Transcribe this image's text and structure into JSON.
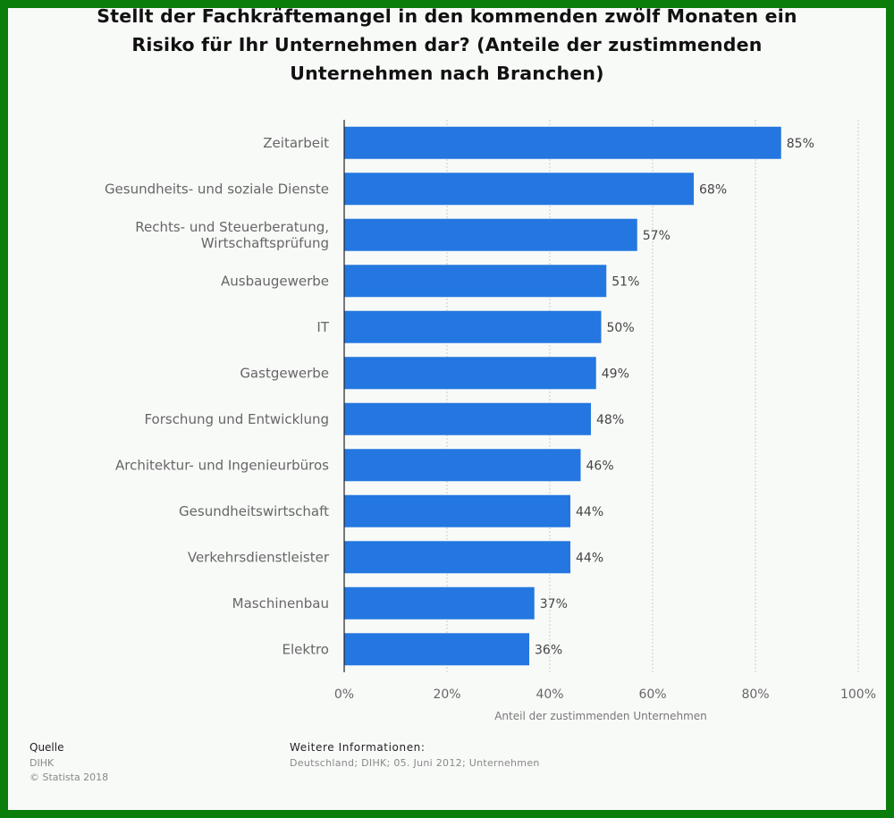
{
  "chart_data": {
    "type": "bar",
    "orientation": "horizontal",
    "title_lines": [
      "Stellt der Fachkräftemangel in den kommenden zwölf Monaten ein",
      "Risiko für Ihr Unternehmen dar? (Anteile der zustimmenden",
      "Unternehmen nach Branchen)"
    ],
    "categories": [
      [
        "Zeitarbeit"
      ],
      [
        "Gesundheits- und soziale Dienste"
      ],
      [
        "Rechts- und Steuerberatung,",
        "Wirtschaftsprüfung"
      ],
      [
        "Ausbaugewerbe"
      ],
      [
        "IT"
      ],
      [
        "Gastgewerbe"
      ],
      [
        "Forschung und Entwicklung"
      ],
      [
        "Architektur- und Ingenieurbüros"
      ],
      [
        "Gesundheitswirtschaft"
      ],
      [
        "Verkehrsdienstleister"
      ],
      [
        "Maschinenbau"
      ],
      [
        "Elektro"
      ]
    ],
    "values": [
      85,
      68,
      57,
      51,
      50,
      49,
      48,
      46,
      44,
      44,
      37,
      36
    ],
    "value_labels": [
      "85%",
      "68%",
      "57%",
      "51%",
      "50%",
      "49%",
      "48%",
      "46%",
      "44%",
      "44%",
      "37%",
      "36%"
    ],
    "xlim": [
      0,
      100
    ],
    "xticks": [
      0,
      20,
      40,
      60,
      80,
      100
    ],
    "xtick_labels": [
      "0%",
      "20%",
      "40%",
      "60%",
      "80%",
      "100%"
    ],
    "xlabel": "Anteil der zustimmenden Unternehmen",
    "grid": true,
    "bar_color": "#2477e0"
  },
  "footer": {
    "source_heading": "Quelle",
    "source_name": "DIHK",
    "copyright": "© Statista 2018",
    "info_heading": "Weitere Informationen:",
    "info_text": "Deutschland; DIHK; 05. Juni 2012; Unternehmen"
  },
  "colors": {
    "border": "#0b7d0b",
    "background": "#f8faf8",
    "bar": "#2477e0",
    "category_text": "#666666",
    "value_text": "#444444"
  }
}
